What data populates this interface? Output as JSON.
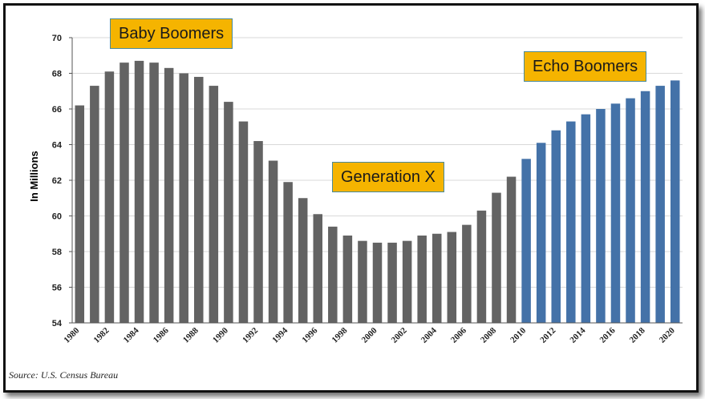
{
  "chart_data": {
    "type": "bar",
    "ylabel": "In Millions",
    "ylim": [
      54,
      70
    ],
    "yticks": [
      54,
      56,
      58,
      60,
      62,
      64,
      66,
      68,
      70
    ],
    "grid": true,
    "categories": [
      "1980",
      "1981",
      "1982",
      "1983",
      "1984",
      "1985",
      "1986",
      "1987",
      "1988",
      "1989",
      "1990",
      "1991",
      "1992",
      "1993",
      "1994",
      "1995",
      "1996",
      "1997",
      "1998",
      "1999",
      "2000",
      "2001",
      "2002",
      "2003",
      "2004",
      "2005",
      "2006",
      "2007",
      "2008",
      "2009",
      "2010",
      "2011",
      "2012",
      "2013",
      "2014",
      "2015",
      "2016",
      "2017",
      "2018",
      "2019",
      "2020"
    ],
    "xticks": [
      "1980",
      "1982",
      "1984",
      "1986",
      "1988",
      "1990",
      "1992",
      "1994",
      "1996",
      "1998",
      "2000",
      "2002",
      "2004",
      "2006",
      "2008",
      "2010",
      "2012",
      "2014",
      "2016",
      "2018",
      "2020"
    ],
    "values": [
      66.2,
      67.3,
      68.1,
      68.6,
      68.7,
      68.6,
      68.3,
      68.0,
      67.8,
      67.3,
      66.4,
      65.3,
      64.2,
      63.1,
      61.9,
      61.0,
      60.1,
      59.4,
      58.9,
      58.6,
      58.5,
      58.5,
      58.6,
      58.9,
      59.0,
      59.1,
      59.5,
      60.3,
      61.3,
      62.2,
      63.2,
      64.1,
      64.8,
      65.3,
      65.7,
      66.0,
      66.3,
      66.6,
      67.0,
      67.3,
      67.6
    ],
    "colors": {
      "historical": "#636363",
      "projected": "#4472A8",
      "projected_from": "2010",
      "grid": "#d9d9d9",
      "callout_fill": "#F5B400"
    },
    "annotations": [
      "Baby Boomers",
      "Generation X",
      "Echo Boomers"
    ]
  },
  "source": "Source: U.S. Census Bureau"
}
